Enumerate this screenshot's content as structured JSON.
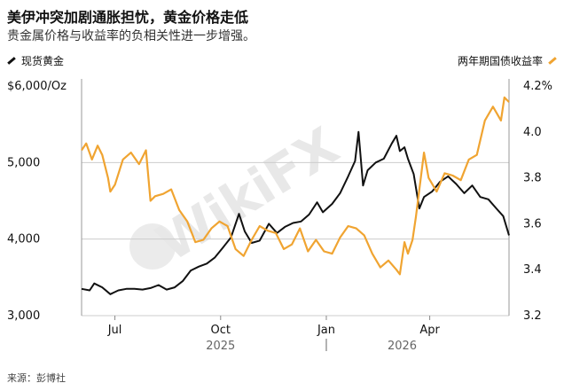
{
  "title": "美伊冲突加剧通胀担忧，黄金价格走低",
  "subtitle": "贵金属价格与收益率的负相关性进一步增强。",
  "source": "来源：彭博社",
  "watermark": "WikiFX",
  "colors": {
    "gold": "#111111",
    "yield": "#f0a431",
    "grid": "#cccccc"
  },
  "chart_data": {
    "type": "line",
    "x_type": "date",
    "x_range": [
      "2025-06-02",
      "2026-06-09"
    ],
    "x_ticks": [
      {
        "date": "2025-07-01",
        "label": "Jul"
      },
      {
        "date": "2025-10-01",
        "label": "Oct"
      },
      {
        "date": "2026-01-01",
        "label": "Jan"
      },
      {
        "date": "2026-04-01",
        "label": "Apr"
      }
    ],
    "year_labels": [
      {
        "date": "2025-10-01",
        "label": "2025"
      },
      {
        "date": "2026-03-08",
        "label": "2026"
      }
    ],
    "year_divider": "2026-01-01",
    "y_left": {
      "label": "$6,000/Oz",
      "range": [
        3000,
        6000
      ],
      "ticks": [
        3000,
        4000,
        5000
      ],
      "tick_labels": [
        "3,000",
        "4,000",
        "5,000"
      ]
    },
    "y_right": {
      "label": "4.2%",
      "range": [
        3.2,
        4.2
      ],
      "ticks": [
        3.2,
        3.4,
        3.6,
        3.8,
        4.0
      ],
      "tick_labels": [
        "3.2",
        "3.4",
        "3.6",
        "3.8",
        "4.0"
      ]
    },
    "series": [
      {
        "name": "现货黄金",
        "axis": "left",
        "points": [
          [
            "2025-06-02",
            3350
          ],
          [
            "2025-06-09",
            3330
          ],
          [
            "2025-06-13",
            3420
          ],
          [
            "2025-06-20",
            3370
          ],
          [
            "2025-06-27",
            3280
          ],
          [
            "2025-07-04",
            3330
          ],
          [
            "2025-07-11",
            3350
          ],
          [
            "2025-07-18",
            3350
          ],
          [
            "2025-07-25",
            3340
          ],
          [
            "2025-08-01",
            3360
          ],
          [
            "2025-08-08",
            3400
          ],
          [
            "2025-08-15",
            3340
          ],
          [
            "2025-08-22",
            3370
          ],
          [
            "2025-08-29",
            3450
          ],
          [
            "2025-09-05",
            3590
          ],
          [
            "2025-09-12",
            3640
          ],
          [
            "2025-09-19",
            3680
          ],
          [
            "2025-09-26",
            3760
          ],
          [
            "2025-10-03",
            3890
          ],
          [
            "2025-10-10",
            4020
          ],
          [
            "2025-10-17",
            4330
          ],
          [
            "2025-10-22",
            4100
          ],
          [
            "2025-10-28",
            3950
          ],
          [
            "2025-11-04",
            3980
          ],
          [
            "2025-11-12",
            4200
          ],
          [
            "2025-11-19",
            4080
          ],
          [
            "2025-11-26",
            4160
          ],
          [
            "2025-12-03",
            4210
          ],
          [
            "2025-12-10",
            4230
          ],
          [
            "2025-12-17",
            4320
          ],
          [
            "2025-12-24",
            4480
          ],
          [
            "2025-12-29",
            4350
          ],
          [
            "2026-01-06",
            4460
          ],
          [
            "2026-01-13",
            4600
          ],
          [
            "2026-01-20",
            4820
          ],
          [
            "2026-01-26",
            5020
          ],
          [
            "2026-01-29",
            5400
          ],
          [
            "2026-02-02",
            4700
          ],
          [
            "2026-02-06",
            4900
          ],
          [
            "2026-02-13",
            5000
          ],
          [
            "2026-02-20",
            5050
          ],
          [
            "2026-02-27",
            5250
          ],
          [
            "2026-03-03",
            5350
          ],
          [
            "2026-03-06",
            5150
          ],
          [
            "2026-03-10",
            5200
          ],
          [
            "2026-03-13",
            5050
          ],
          [
            "2026-03-18",
            4850
          ],
          [
            "2026-03-23",
            4400
          ],
          [
            "2026-03-27",
            4550
          ],
          [
            "2026-04-03",
            4620
          ],
          [
            "2026-04-10",
            4750
          ],
          [
            "2026-04-17",
            4820
          ],
          [
            "2026-04-24",
            4720
          ],
          [
            "2026-05-01",
            4600
          ],
          [
            "2026-05-08",
            4700
          ],
          [
            "2026-05-15",
            4550
          ],
          [
            "2026-05-22",
            4520
          ],
          [
            "2026-05-29",
            4400
          ],
          [
            "2026-06-04",
            4300
          ],
          [
            "2026-06-09",
            4050
          ]
        ]
      },
      {
        "name": "两年期国债收益率",
        "axis": "right",
        "points": [
          [
            "2025-06-02",
            3.92
          ],
          [
            "2025-06-06",
            3.95
          ],
          [
            "2025-06-11",
            3.88
          ],
          [
            "2025-06-16",
            3.94
          ],
          [
            "2025-06-20",
            3.9
          ],
          [
            "2025-06-25",
            3.8
          ],
          [
            "2025-06-27",
            3.74
          ],
          [
            "2025-07-01",
            3.77
          ],
          [
            "2025-07-08",
            3.88
          ],
          [
            "2025-07-15",
            3.91
          ],
          [
            "2025-07-22",
            3.86
          ],
          [
            "2025-07-28",
            3.92
          ],
          [
            "2025-08-01",
            3.7
          ],
          [
            "2025-08-05",
            3.72
          ],
          [
            "2025-08-12",
            3.73
          ],
          [
            "2025-08-19",
            3.75
          ],
          [
            "2025-08-26",
            3.66
          ],
          [
            "2025-09-02",
            3.61
          ],
          [
            "2025-09-09",
            3.52
          ],
          [
            "2025-09-16",
            3.53
          ],
          [
            "2025-09-23",
            3.58
          ],
          [
            "2025-09-30",
            3.61
          ],
          [
            "2025-10-07",
            3.59
          ],
          [
            "2025-10-14",
            3.49
          ],
          [
            "2025-10-21",
            3.46
          ],
          [
            "2025-10-28",
            3.53
          ],
          [
            "2025-11-04",
            3.59
          ],
          [
            "2025-11-11",
            3.57
          ],
          [
            "2025-11-18",
            3.56
          ],
          [
            "2025-11-25",
            3.49
          ],
          [
            "2025-12-02",
            3.51
          ],
          [
            "2025-12-09",
            3.58
          ],
          [
            "2025-12-16",
            3.48
          ],
          [
            "2025-12-23",
            3.53
          ],
          [
            "2025-12-30",
            3.48
          ],
          [
            "2026-01-06",
            3.47
          ],
          [
            "2026-01-13",
            3.54
          ],
          [
            "2026-01-20",
            3.59
          ],
          [
            "2026-01-27",
            3.58
          ],
          [
            "2026-02-03",
            3.55
          ],
          [
            "2026-02-10",
            3.47
          ],
          [
            "2026-02-17",
            3.41
          ],
          [
            "2026-02-24",
            3.44
          ],
          [
            "2026-03-03",
            3.4
          ],
          [
            "2026-03-06",
            3.38
          ],
          [
            "2026-03-10",
            3.52
          ],
          [
            "2026-03-13",
            3.47
          ],
          [
            "2026-03-17",
            3.53
          ],
          [
            "2026-03-20",
            3.63
          ],
          [
            "2026-03-24",
            3.79
          ],
          [
            "2026-03-27",
            3.91
          ],
          [
            "2026-03-31",
            3.8
          ],
          [
            "2026-04-07",
            3.74
          ],
          [
            "2026-04-14",
            3.82
          ],
          [
            "2026-04-21",
            3.81
          ],
          [
            "2026-04-28",
            3.79
          ],
          [
            "2026-05-05",
            3.88
          ],
          [
            "2026-05-12",
            3.9
          ],
          [
            "2026-05-19",
            4.05
          ],
          [
            "2026-05-26",
            4.11
          ],
          [
            "2026-06-02",
            4.05
          ],
          [
            "2026-06-05",
            4.15
          ],
          [
            "2026-06-09",
            4.13
          ]
        ]
      }
    ]
  }
}
